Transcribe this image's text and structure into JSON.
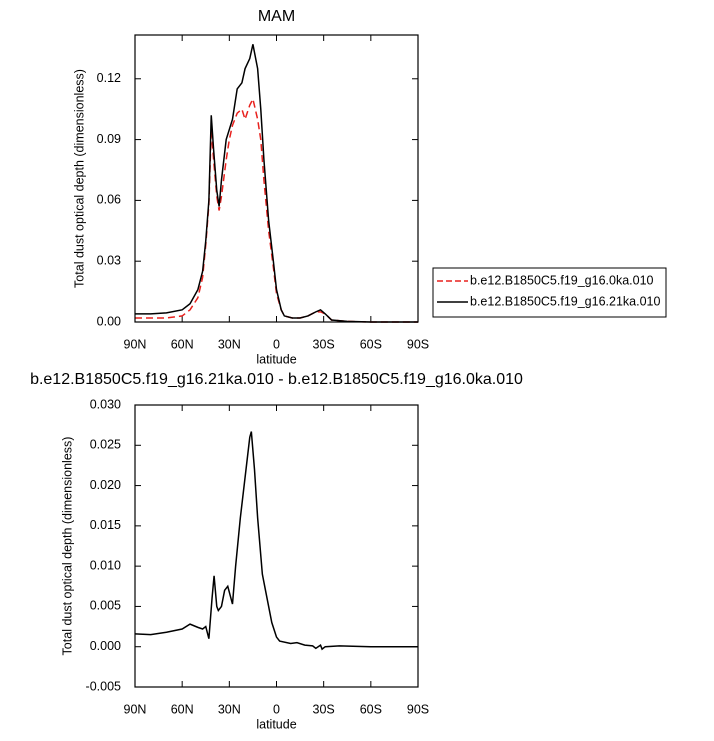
{
  "chart_data": [
    {
      "type": "line",
      "title": "MAM",
      "xlabel": "latitude",
      "ylabel": "Total dust optical depth (dimensionless)",
      "x": [
        90,
        80,
        70,
        60,
        55,
        50,
        47,
        45,
        43,
        41.5,
        40,
        38,
        36.5,
        35,
        32,
        30,
        28,
        25,
        22,
        20,
        17,
        15,
        12,
        10,
        8,
        5,
        2,
        0,
        -3,
        -5,
        -10,
        -15,
        -20,
        -25,
        -28,
        -31,
        -35,
        -45,
        -60,
        -75,
        -90
      ],
      "series": [
        {
          "name": "b.e12.B1850C5.f19_g16.0ka.010",
          "color": "#e8211d",
          "line_style": "dashed",
          "values": [
            0.002,
            0.002,
            0.002,
            0.003,
            0.006,
            0.012,
            0.022,
            0.038,
            0.058,
            0.095,
            0.08,
            0.062,
            0.055,
            0.062,
            0.08,
            0.09,
            0.097,
            0.103,
            0.105,
            0.1,
            0.107,
            0.11,
            0.1,
            0.09,
            0.07,
            0.045,
            0.027,
            0.014,
            0.006,
            0.003,
            0.002,
            0.002,
            0.003,
            0.005,
            0.005,
            0.004,
            0.001,
            0.0003,
            0,
            0,
            0
          ]
        },
        {
          "name": "b.e12.B1850C5.f19_g16.21ka.010",
          "color": "#000000",
          "line_style": "solid",
          "values": [
            0.004,
            0.004,
            0.0045,
            0.006,
            0.009,
            0.016,
            0.025,
            0.04,
            0.06,
            0.102,
            0.085,
            0.065,
            0.057,
            0.07,
            0.09,
            0.095,
            0.1,
            0.115,
            0.118,
            0.125,
            0.13,
            0.137,
            0.125,
            0.105,
            0.08,
            0.05,
            0.03,
            0.016,
            0.006,
            0.003,
            0.002,
            0.002,
            0.003,
            0.005,
            0.006,
            0.004,
            0.001,
            0.0003,
            0,
            0,
            0
          ]
        }
      ],
      "xlim": [
        90,
        -90
      ],
      "xticks": [
        {
          "value": 90,
          "label": "90N"
        },
        {
          "value": 60,
          "label": "60N"
        },
        {
          "value": 30,
          "label": "30N"
        },
        0,
        {
          "value": -30,
          "label": "30S"
        },
        {
          "value": -60,
          "label": "60S"
        },
        {
          "value": -90,
          "label": "90S"
        }
      ],
      "ylim": [
        0,
        0.1416
      ],
      "yticks": [
        {
          "value": 0,
          "label": "0.00"
        },
        {
          "value": 0.03,
          "label": "0.03"
        },
        {
          "value": 0.06,
          "label": "0.06"
        },
        {
          "value": 0.09,
          "label": "0.09"
        },
        {
          "value": 0.12,
          "label": "0.12"
        }
      ],
      "legend": "right"
    },
    {
      "type": "line",
      "title": "b.e12.B1850C5.f19_g16.21ka.010 - b.e12.B1850C5.f19_g16.0ka.010",
      "xlabel": "latitude",
      "ylabel": "Total dust optical depth (dimensionless)",
      "x": [
        90,
        80,
        70,
        60,
        55,
        50,
        47,
        45,
        43,
        41,
        39.7,
        38,
        37,
        35,
        33,
        31,
        28,
        26,
        23,
        20,
        17,
        16,
        14,
        12,
        9,
        7,
        3,
        0,
        -2,
        -9,
        -13,
        -18,
        -23,
        -25,
        -28,
        -29,
        -31,
        -40,
        -60,
        -90
      ],
      "values": [
        0.0016,
        0.0015,
        0.0018,
        0.0022,
        0.0028,
        0.0024,
        0.0022,
        0.0025,
        0.001,
        0.006,
        0.0088,
        0.005,
        0.0045,
        0.005,
        0.007,
        0.0075,
        0.0053,
        0.01,
        0.016,
        0.021,
        0.026,
        0.0267,
        0.022,
        0.016,
        0.009,
        0.007,
        0.003,
        0.0012,
        0.0007,
        0.0004,
        0.0005,
        0.0002,
        0.0001,
        -0.0002,
        0.0002,
        -0.0003,
        0,
        0.0001,
        0,
        0
      ],
      "color": "#000000",
      "xlim": [
        90,
        -90
      ],
      "xticks": [
        {
          "value": 90,
          "label": "90N"
        },
        {
          "value": 60,
          "label": "60N"
        },
        {
          "value": 30,
          "label": "30N"
        },
        0,
        {
          "value": -30,
          "label": "30S"
        },
        {
          "value": -60,
          "label": "60S"
        },
        {
          "value": -90,
          "label": "90S"
        }
      ],
      "ylim": [
        -0.005,
        0.03
      ],
      "yticks": [
        {
          "value": -0.005,
          "label": "-0.005"
        },
        {
          "value": 0,
          "label": "0.000"
        },
        {
          "value": 0.005,
          "label": "0.005"
        },
        {
          "value": 0.01,
          "label": "0.010"
        },
        {
          "value": 0.015,
          "label": "0.015"
        },
        {
          "value": 0.02,
          "label": "0.020"
        },
        {
          "value": 0.025,
          "label": "0.025"
        },
        {
          "value": 0.03,
          "label": "0.030"
        }
      ]
    }
  ]
}
